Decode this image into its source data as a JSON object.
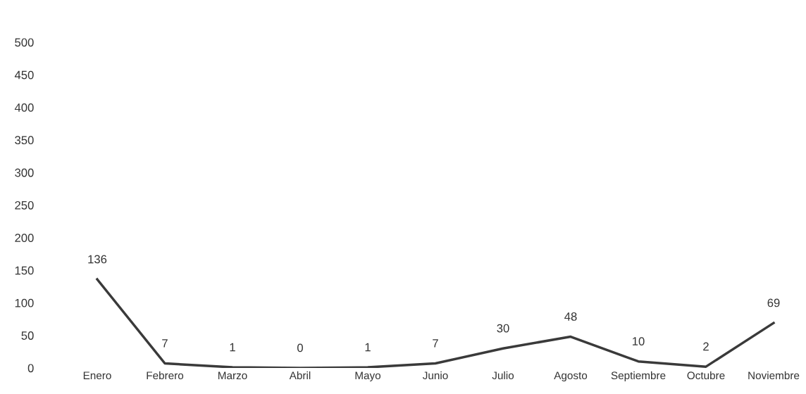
{
  "chart_data": {
    "type": "line",
    "categories": [
      "Enero",
      "Febrero",
      "Marzo",
      "Abril",
      "Mayo",
      "Junio",
      "Julio",
      "Agosto",
      "Septiembre",
      "Octubre",
      "Noviembre"
    ],
    "series": [
      {
        "color": "#3a3a3a",
        "values": [
          136,
          7,
          1,
          0,
          1,
          7,
          30,
          48,
          10,
          2,
          69
        ]
      }
    ],
    "ylim": [
      0,
      500
    ],
    "yticks": [
      0,
      50,
      100,
      150,
      200,
      250,
      300,
      350,
      400,
      450,
      500
    ],
    "data_labels": true,
    "grid": false,
    "legend": false,
    "marker": "none",
    "line_style": "solid"
  }
}
